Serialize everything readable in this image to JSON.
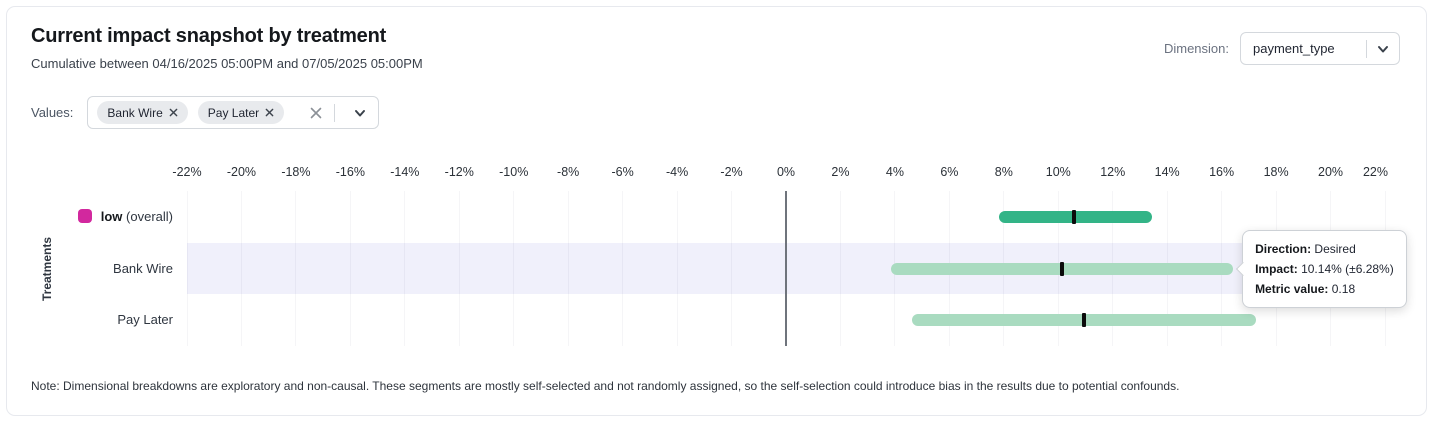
{
  "header": {
    "title": "Current impact snapshot by treatment",
    "subtitle": "Cumulative between 04/16/2025 05:00PM and 07/05/2025 05:00PM",
    "dimension": {
      "label": "Dimension:",
      "value": "payment_type"
    }
  },
  "filters": {
    "label": "Values:",
    "chips": [
      {
        "label": "Bank Wire"
      },
      {
        "label": "Pay Later"
      }
    ]
  },
  "chart_data": {
    "type": "bar",
    "variant": "horizontal-interval",
    "title": "Current impact snapshot by treatment",
    "xlabel": "",
    "ylabel": "Treatments",
    "xlim": [
      -22,
      22
    ],
    "x_ticks": [
      -22,
      -20,
      -18,
      -16,
      -14,
      -12,
      -10,
      -8,
      -6,
      -4,
      -2,
      0,
      2,
      4,
      6,
      8,
      10,
      12,
      14,
      16,
      18,
      20,
      22
    ],
    "x_tick_suffix": "%",
    "grid": true,
    "legend_position": "left-of-rows",
    "series": [
      {
        "name": "low (overall)",
        "label_bold": "low",
        "label_rest": " (overall)",
        "center": 10.57,
        "low": 7.81,
        "high": 13.45,
        "bar_color": "#33b487",
        "legend_color": "#d2289e",
        "highlighted": false
      },
      {
        "name": "Bank Wire",
        "center": 10.14,
        "low": 3.86,
        "high": 16.42,
        "bar_color": "#a9dbc0",
        "highlighted": true
      },
      {
        "name": "Pay Later",
        "center": 10.94,
        "low": 4.64,
        "high": 17.28,
        "bar_color": "#a9dbc0",
        "highlighted": false
      }
    ],
    "center_tick_color": "#0b0b0b",
    "highlight_band_color": "#f0f0fb",
    "zero_line_color": "#6f747c"
  },
  "tooltip": {
    "anchor_series": 1,
    "rows": [
      {
        "label": "Direction:",
        "value": "Desired"
      },
      {
        "label": "Impact:",
        "value": "10.14% (±6.28%)"
      },
      {
        "label": "Metric value:",
        "value": "0.18"
      }
    ]
  },
  "note": "Note: Dimensional breakdowns are exploratory and non-causal. These segments are mostly self-selected and not randomly assigned, so the self-selection could introduce bias in the results due to potential confounds."
}
